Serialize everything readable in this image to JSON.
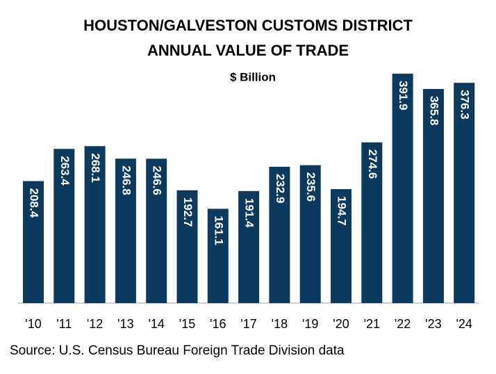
{
  "chart_data": {
    "type": "bar",
    "title": [
      "HOUSTON/GALVESTON CUSTOMS DISTRICT",
      "ANNUAL VALUE OF TRADE"
    ],
    "subtitle": "$ Billion",
    "categories": [
      "'10",
      "'11",
      "'12",
      "'13",
      "'14",
      "'15",
      "'16",
      "'17",
      "'18",
      "'19",
      "'20",
      "'21",
      "'22",
      "'23",
      "'24"
    ],
    "values": [
      208.4,
      263.4,
      268.1,
      246.8,
      246.6,
      192.7,
      161.1,
      191.4,
      232.9,
      235.6,
      194.7,
      274.6,
      391.9,
      365.8,
      376.3
    ],
    "color": "#0b3a5e",
    "source": "Source: U.S. Census Bureau Foreign Trade Division data"
  }
}
